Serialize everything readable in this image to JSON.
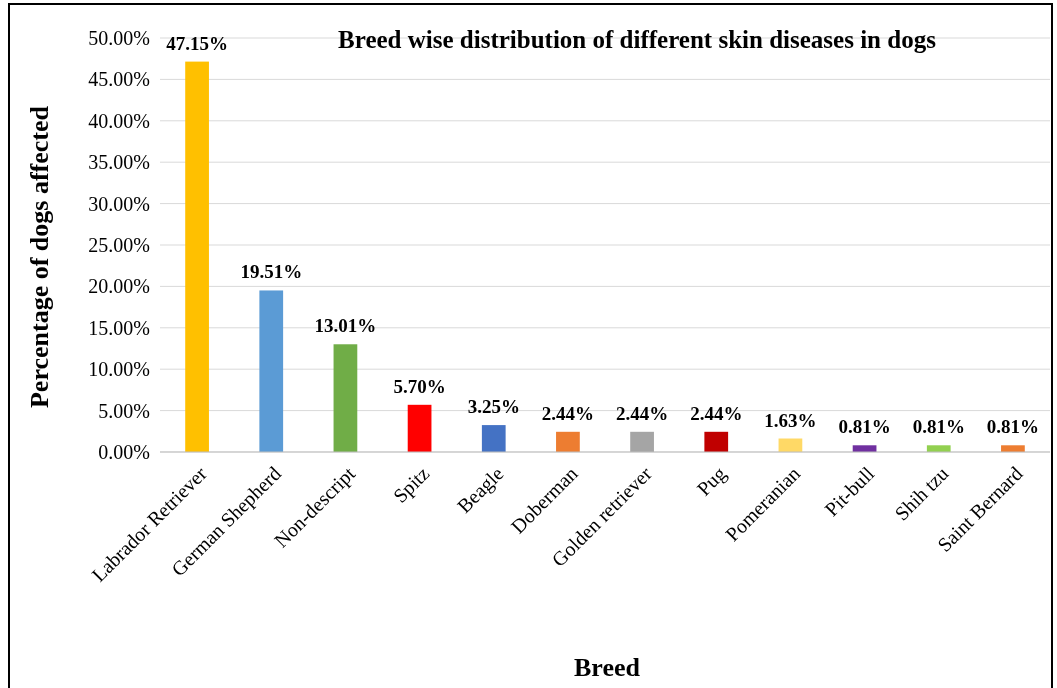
{
  "chart_data": {
    "type": "bar",
    "title": "Breed wise distribution of different skin diseases in dogs",
    "xlabel": "Breed",
    "ylabel": "Percentage of dogs affected",
    "categories": [
      "Labrador Retriever",
      "German Shepherd",
      "Non-descript",
      "Spitz",
      "Beagle",
      "Doberman",
      "Golden retriever",
      "Pug",
      "Pomeranian",
      "Pit-bull",
      "Shih tzu",
      "Saint Bernard"
    ],
    "values": [
      47.15,
      19.51,
      13.01,
      5.7,
      3.25,
      2.44,
      2.44,
      2.44,
      1.63,
      0.81,
      0.81,
      0.81
    ],
    "value_labels": [
      "47.15%",
      "19.51%",
      "13.01%",
      "5.70%",
      "3.25%",
      "2.44%",
      "2.44%",
      "2.44%",
      "1.63%",
      "0.81%",
      "0.81%",
      "0.81%"
    ],
    "colors": [
      "#ffc000",
      "#5b9bd5",
      "#70ad47",
      "#ff0000",
      "#4472c4",
      "#ed7d31",
      "#a5a5a5",
      "#c00000",
      "#ffd966",
      "#7030a0",
      "#92d050",
      "#ed7d31"
    ],
    "ylim": [
      0,
      50
    ],
    "yticks": [
      {
        "value": 0,
        "label": "0.00%"
      },
      {
        "value": 5,
        "label": "5.00%"
      },
      {
        "value": 10,
        "label": "10.00%"
      },
      {
        "value": 15,
        "label": "15.00%"
      },
      {
        "value": 20,
        "label": "20.00%"
      },
      {
        "value": 25,
        "label": "25.00%"
      },
      {
        "value": 30,
        "label": "30.00%"
      },
      {
        "value": 35,
        "label": "35.00%"
      },
      {
        "value": 40,
        "label": "40.00%"
      },
      {
        "value": 45,
        "label": "45.00%"
      },
      {
        "value": 50,
        "label": "50.00%"
      }
    ],
    "grid": "y"
  }
}
